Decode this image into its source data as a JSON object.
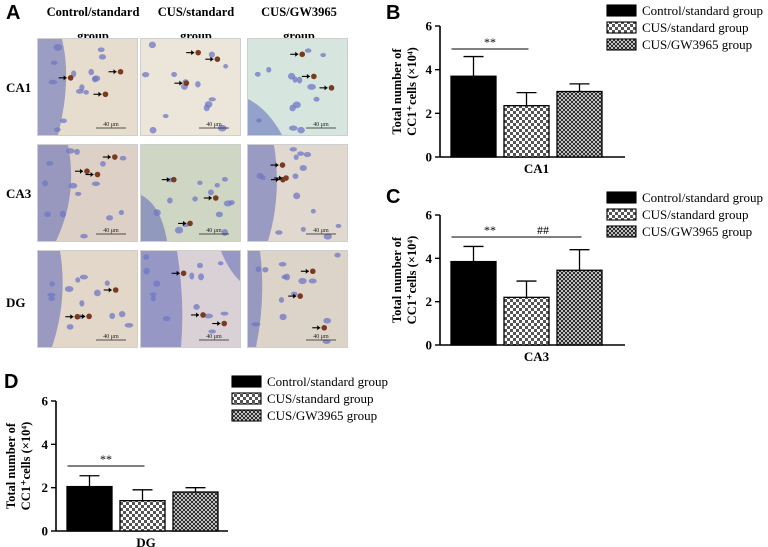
{
  "panel_a": {
    "letter": "A",
    "columns": [
      "Control/standard",
      "CUS/standard",
      "CUS/GW3965"
    ],
    "column_sublabel": "group",
    "rows": [
      "CA1",
      "CA3",
      "DG"
    ],
    "scale_bar": "40 μm"
  },
  "chart_data": [
    {
      "type": "bar",
      "panel": "B",
      "categories": [
        "Control/standard group",
        "CUS/standard group",
        "CUS/GW3965 group"
      ],
      "values": [
        3.7,
        2.35,
        3.0
      ],
      "errors": [
        0.9,
        0.6,
        0.35
      ],
      "xlabel": "CA1",
      "ylabel_line1": "Total number of",
      "ylabel_line2": "CC1⁺cells (×10⁴)",
      "ylim": [
        0,
        6
      ],
      "yticks": [
        "0",
        "2",
        "4",
        "6"
      ],
      "significance": [
        {
          "from": 0,
          "to": 1,
          "label": "**"
        }
      ],
      "legend": [
        "Control/standard group",
        "CUS/standard group",
        "CUS/GW3965 group"
      ]
    },
    {
      "type": "bar",
      "panel": "C",
      "categories": [
        "Control/standard group",
        "CUS/standard group",
        "CUS/GW3965 group"
      ],
      "values": [
        3.85,
        2.2,
        3.45
      ],
      "errors": [
        0.7,
        0.75,
        0.95
      ],
      "xlabel": "CA3",
      "ylabel_line1": "Total number of",
      "ylabel_line2": "CC1⁺cells (×10⁴)",
      "ylim": [
        0,
        6
      ],
      "yticks": [
        "0",
        "2",
        "4",
        "6"
      ],
      "significance": [
        {
          "from": 0,
          "to": 1,
          "label": "**"
        },
        {
          "from": 1,
          "to": 2,
          "label": "##"
        }
      ],
      "legend": [
        "Control/standard group",
        "CUS/standard group",
        "CUS/GW3965 group"
      ]
    },
    {
      "type": "bar",
      "panel": "D",
      "categories": [
        "Control/standard group",
        "CUS/standard group",
        "CUS/GW3965 group"
      ],
      "values": [
        2.05,
        1.4,
        1.8
      ],
      "errors": [
        0.5,
        0.5,
        0.2
      ],
      "xlabel": "DG",
      "ylabel_line1": "Total number of",
      "ylabel_line2": "CC1⁺cells (×10⁴)",
      "ylim": [
        0,
        6
      ],
      "yticks": [
        "0",
        "2",
        "4",
        "6"
      ],
      "significance": [
        {
          "from": 0,
          "to": 1,
          "label": "**"
        }
      ],
      "legend": [
        "Control/standard group",
        "CUS/standard group",
        "CUS/GW3965 group"
      ]
    }
  ]
}
